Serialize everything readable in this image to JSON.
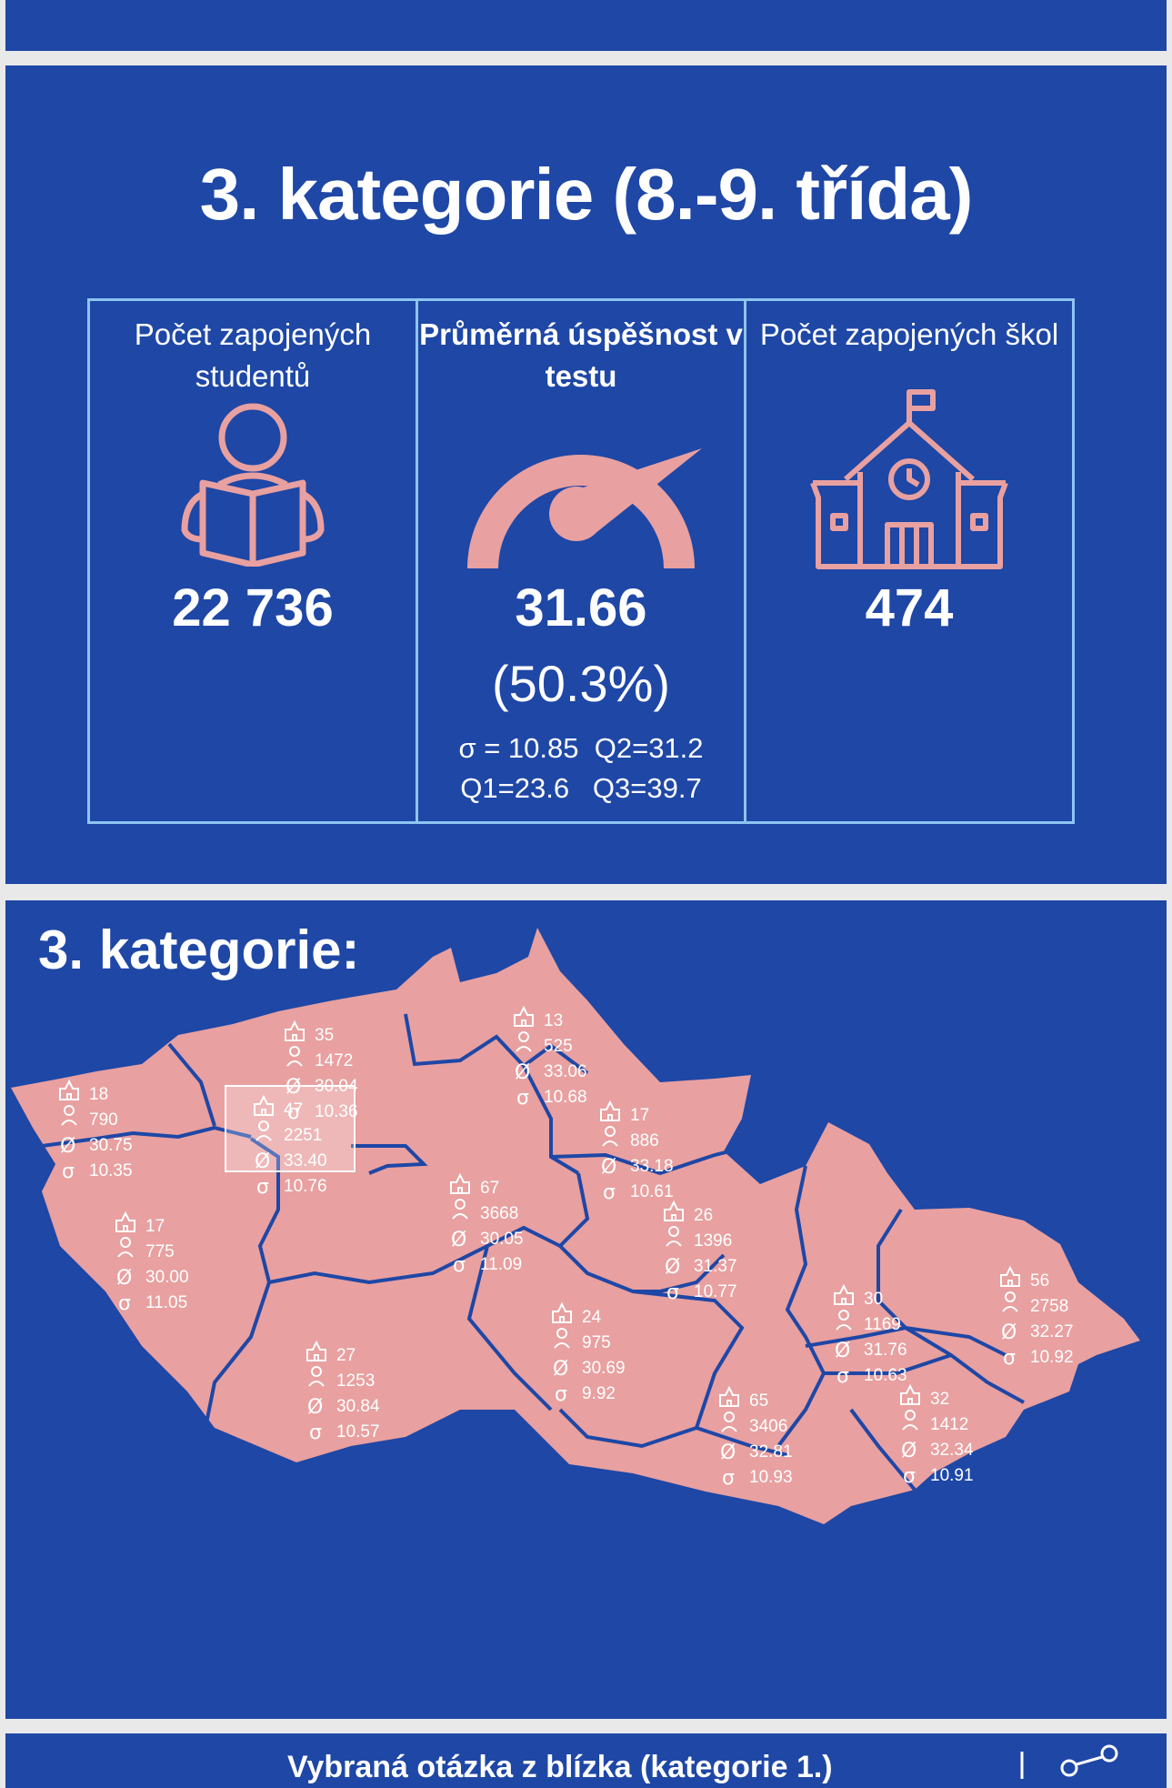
{
  "section_title": "3. kategorie (8.-9. třída)",
  "stats": {
    "students": {
      "label": "Počet zapojených studentů",
      "value": "22 736",
      "icon": "student-reading-icon"
    },
    "score": {
      "label": "Průměrná úspěšnost v testu",
      "value": "31.66",
      "percent_text": "(50.3%)",
      "percent": 50.3,
      "line1": "σ = 10.85  Q2=31.2",
      "line2": "Q1=23.6   Q3=39.7",
      "icon": "gauge-icon"
    },
    "schools": {
      "label": "Počet zapojených škol",
      "value": "474",
      "icon": "school-building-icon"
    }
  },
  "map": {
    "title": "3. kategorie:",
    "regions": [
      {
        "schools": "35",
        "students": "1472",
        "avg": "30.04",
        "sd": "10.36"
      },
      {
        "schools": "13",
        "students": "525",
        "avg": "33.06",
        "sd": "10.68"
      },
      {
        "schools": "18",
        "students": "790",
        "avg": "30.75",
        "sd": "10.35"
      },
      {
        "schools": "47",
        "students": "2251",
        "avg": "33.40",
        "sd": "10.76"
      },
      {
        "schools": "17",
        "students": "886",
        "avg": "33.18",
        "sd": "10.61"
      },
      {
        "schools": "67",
        "students": "3668",
        "avg": "30.05",
        "sd": "11.09"
      },
      {
        "schools": "17",
        "students": "775",
        "avg": "30.00",
        "sd": "11.05"
      },
      {
        "schools": "26",
        "students": "1396",
        "avg": "31.37",
        "sd": "10.77"
      },
      {
        "schools": "30",
        "students": "1169",
        "avg": "31.76",
        "sd": "10.63"
      },
      {
        "schools": "56",
        "students": "2758",
        "avg": "32.27",
        "sd": "10.92"
      },
      {
        "schools": "24",
        "students": "975",
        "avg": "30.69",
        "sd": "9.92"
      },
      {
        "schools": "27",
        "students": "1253",
        "avg": "30.84",
        "sd": "10.57"
      },
      {
        "schools": "65",
        "students": "3406",
        "avg": "32.81",
        "sd": "10.93"
      },
      {
        "schools": "32",
        "students": "1412",
        "avg": "32.34",
        "sd": "10.91"
      }
    ]
  },
  "bottom": {
    "title": "Vybraná otázka z blízka (kategorie 1.)"
  },
  "colors": {
    "panel": "#1e47a6",
    "accent": "#e8a0a0",
    "border": "#8fc4f2",
    "page": "#e9e9ea"
  }
}
